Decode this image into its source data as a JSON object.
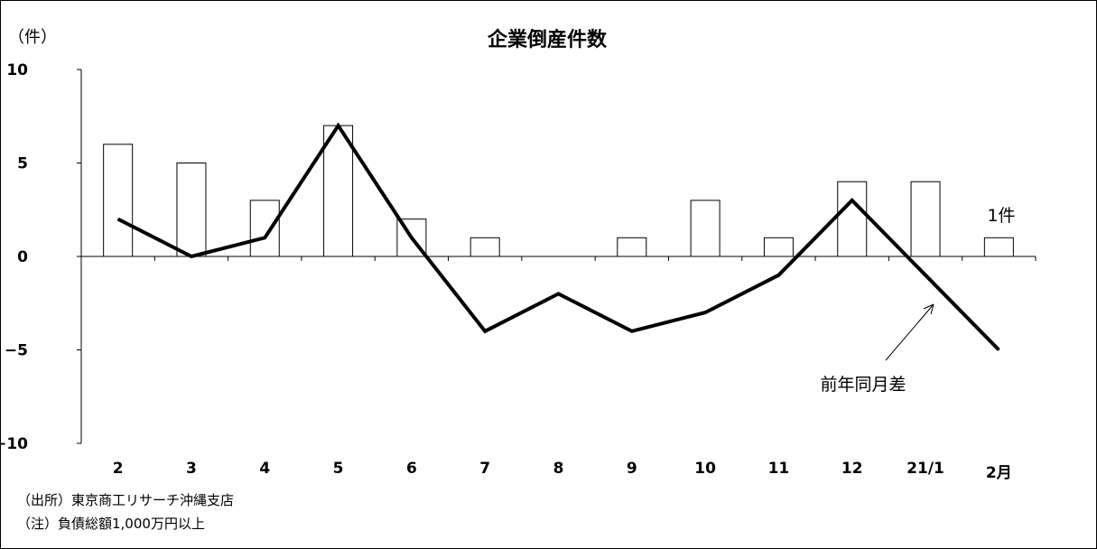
{
  "chart_data": {
    "type": "bar",
    "title": "企業倒産件数",
    "ylabel": "（件）",
    "ylim": [
      -10,
      10
    ],
    "yticks": [
      10,
      5,
      0,
      -5,
      -10
    ],
    "yticks_labels": [
      "10",
      "5",
      "0",
      "−5",
      "−10"
    ],
    "categories": [
      "2",
      "3",
      "4",
      "5",
      "6",
      "7",
      "8",
      "9",
      "10",
      "11",
      "12",
      "21/1",
      "2月"
    ],
    "series": [
      {
        "type": "bar",
        "values": [
          6,
          5,
          3,
          7,
          2,
          1,
          0,
          1,
          3,
          1,
          4,
          4,
          1
        ]
      },
      {
        "name": "前年同月差",
        "type": "line",
        "values": [
          2,
          0,
          1,
          7,
          1,
          -4,
          -2,
          -4,
          -3,
          -1,
          3,
          -1,
          -5
        ]
      }
    ],
    "annotations": {
      "last_bar_label": "1件",
      "line_label": "前年同月差"
    },
    "notes": [
      "（出所）東京商工リサーチ沖縄支店",
      "（注）負債総額1,000万円以上"
    ]
  }
}
